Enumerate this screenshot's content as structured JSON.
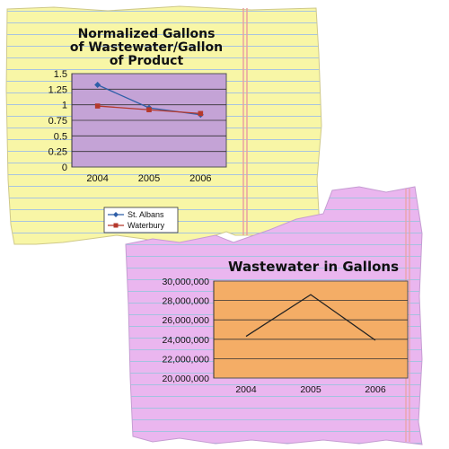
{
  "chart_data": [
    {
      "type": "line",
      "title": "Normalized Gallons\nof Wastewater/Gallon\nof Product",
      "categories": [
        "2004",
        "2005",
        "2006"
      ],
      "ylim": [
        0,
        1.5
      ],
      "y_ticks": [
        "0",
        "0.25",
        "0.5",
        "0.75",
        "1",
        "1.25",
        "1.5"
      ],
      "grid": true,
      "legend_placement": "bottom",
      "plot_background": "#c4a3d6",
      "paper_background": "#f8f6a6",
      "series": [
        {
          "name": "St. Albans",
          "values": [
            1.32,
            0.95,
            0.84
          ],
          "color": "#2e5fa8",
          "marker": "diamond"
        },
        {
          "name": "Waterbury",
          "values": [
            0.98,
            0.92,
            0.86
          ],
          "color": "#b5392c",
          "marker": "square"
        }
      ]
    },
    {
      "type": "line",
      "title": "Wastewater in Gallons",
      "categories": [
        "2004",
        "2005",
        "2006"
      ],
      "ylim": [
        20000000,
        30000000
      ],
      "y_ticks": [
        "20,000,000",
        "22,000,000",
        "24,000,000",
        "26,000,000",
        "28,000,000",
        "30,000,000"
      ],
      "grid": true,
      "plot_background": "#f4ad66",
      "paper_background": "#eab6ef",
      "series": [
        {
          "values": [
            24300000,
            28600000,
            23900000
          ],
          "color": "#222222"
        }
      ]
    }
  ]
}
